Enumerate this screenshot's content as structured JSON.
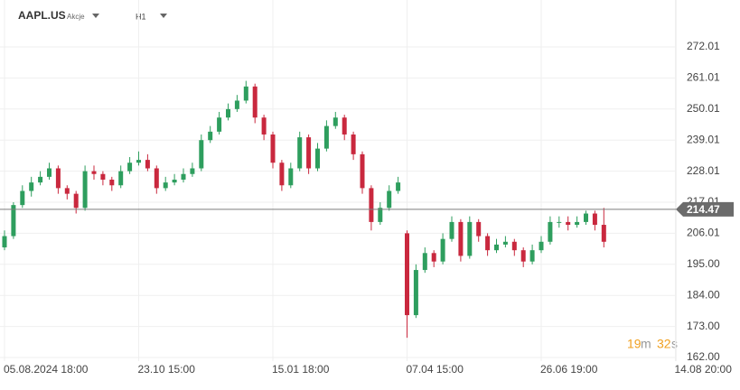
{
  "header": {
    "symbol": "AAPL.US",
    "asset_class": "Akcje",
    "interval": "H1",
    "timer": [
      "19",
      "m",
      "32",
      "s"
    ]
  },
  "chart_data": {
    "type": "candlestick",
    "up_color": "#2e9e5e",
    "down_color": "#c9283e",
    "ylim": [
      160.72,
      288.64
    ],
    "yticks": [
      {
        "value": 162,
        "label": "162.00"
      },
      {
        "value": 173,
        "label": "173.00"
      },
      {
        "value": 184,
        "label": "184.00"
      },
      {
        "value": 195,
        "label": "195.00"
      },
      206.01,
      217.01,
      228.01,
      239.01,
      250.01,
      261.01,
      272.01
    ],
    "grid": true,
    "last_price": 214.47,
    "categories": [
      "05.08.2024 18:00",
      null,
      null,
      null,
      null,
      null,
      null,
      null,
      null,
      null,
      null,
      null,
      null,
      null,
      null,
      "23.10 15:00",
      null,
      null,
      null,
      null,
      null,
      null,
      null,
      null,
      null,
      null,
      null,
      null,
      null,
      null,
      "15.01 18:00",
      null,
      null,
      null,
      null,
      null,
      null,
      null,
      null,
      null,
      null,
      null,
      null,
      null,
      null,
      "07.04 15:00",
      null,
      null,
      null,
      null,
      null,
      null,
      null,
      null,
      null,
      null,
      null,
      null,
      null,
      null,
      "26.06 19:00",
      null,
      null,
      null,
      null,
      null,
      null,
      null,
      null,
      null,
      null,
      null,
      null,
      null,
      null,
      "14.08 20:00"
    ],
    "ohlc": [
      [
        201,
        207,
        200,
        205
      ],
      [
        205,
        217,
        204,
        216
      ],
      [
        216,
        223,
        215,
        221
      ],
      [
        221,
        226,
        219,
        224
      ],
      [
        224,
        228,
        223,
        226
      ],
      [
        226,
        231,
        225,
        229
      ],
      [
        229,
        230,
        220,
        222
      ],
      [
        222,
        223,
        218,
        220
      ],
      [
        220,
        221,
        213,
        215
      ],
      [
        215,
        230,
        214,
        228
      ],
      [
        228,
        230,
        225,
        227
      ],
      [
        227,
        228,
        223,
        225
      ],
      [
        225,
        226,
        221,
        223
      ],
      [
        223,
        230,
        222,
        228
      ],
      [
        228,
        233,
        227,
        231
      ],
      [
        231,
        235,
        230,
        232
      ],
      [
        232,
        234,
        228,
        229
      ],
      [
        229,
        230,
        220,
        222
      ],
      [
        222,
        226,
        221,
        224
      ],
      [
        224,
        227,
        223,
        225
      ],
      [
        225,
        229,
        224,
        227
      ],
      [
        227,
        231,
        226,
        229
      ],
      [
        229,
        241,
        228,
        239
      ],
      [
        239,
        244,
        238,
        242
      ],
      [
        242,
        249,
        241,
        247
      ],
      [
        247,
        252,
        246,
        250
      ],
      [
        250,
        255,
        249,
        253
      ],
      [
        253,
        260,
        252,
        258
      ],
      [
        258,
        259,
        245,
        247
      ],
      [
        247,
        248,
        239,
        241
      ],
      [
        241,
        242,
        229,
        231
      ],
      [
        231,
        232,
        221,
        223
      ],
      [
        223,
        231,
        222,
        229
      ],
      [
        229,
        242,
        228,
        240
      ],
      [
        240,
        241,
        227,
        229
      ],
      [
        229,
        238,
        228,
        236
      ],
      [
        236,
        246,
        235,
        244
      ],
      [
        244,
        249,
        243,
        247
      ],
      [
        247,
        248,
        239,
        241
      ],
      [
        241,
        242,
        232,
        234
      ],
      [
        234,
        235,
        220,
        222
      ],
      [
        222,
        223,
        207,
        210
      ],
      [
        210,
        217,
        209,
        215
      ],
      [
        215,
        223,
        214,
        221
      ],
      [
        221,
        226,
        220,
        224
      ],
      [
        206,
        207,
        169,
        177
      ],
      [
        177,
        195,
        176,
        193
      ],
      [
        193,
        201,
        192,
        199
      ],
      [
        199,
        200,
        194,
        196
      ],
      [
        196,
        206,
        195,
        204
      ],
      [
        204,
        212,
        203,
        210
      ],
      [
        210,
        211,
        196,
        198
      ],
      [
        198,
        212,
        197,
        210
      ],
      [
        210,
        211,
        203,
        205
      ],
      [
        205,
        206,
        198,
        200
      ],
      [
        200,
        204,
        199,
        202
      ],
      [
        202,
        205,
        201,
        203
      ],
      [
        203,
        204,
        198,
        200
      ],
      [
        200,
        201,
        194,
        196
      ],
      [
        196,
        202,
        195,
        200
      ],
      [
        200,
        205,
        199,
        203
      ],
      [
        203,
        212,
        202,
        210
      ],
      [
        210,
        212,
        208,
        210
      ],
      [
        210,
        212,
        207,
        209
      ],
      [
        209,
        212,
        208,
        210
      ],
      [
        210,
        214,
        209,
        213
      ],
      [
        213,
        214,
        207,
        209
      ],
      [
        209,
        215,
        201,
        203
      ],
      null,
      null,
      null,
      null,
      null,
      null,
      null,
      null
    ]
  }
}
